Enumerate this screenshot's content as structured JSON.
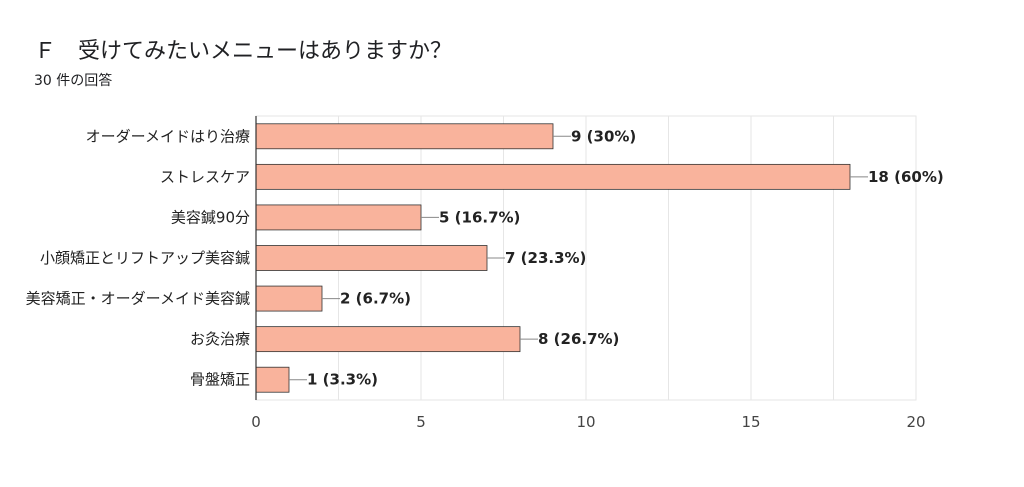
{
  "header": {
    "title": "Ｆ　受けてみたいメニューはありますか？",
    "response_count": "30 件の回答"
  },
  "chart_data": {
    "type": "bar",
    "orientation": "horizontal",
    "categories": [
      "オーダーメイドはり治療",
      "ストレスケア",
      "美容鍼90分",
      "小顔矯正とリフトアップ美容鍼",
      "美容矯正・オーダーメイド美容鍼",
      "お灸治療",
      "骨盤矯正"
    ],
    "values": [
      9,
      18,
      5,
      7,
      2,
      8,
      1
    ],
    "data_labels": [
      "9 (30%)",
      "18 (60%)",
      "5 (16.7%)",
      "7 (23.3%)",
      "2 (6.7%)",
      "8 (26.7%)",
      "1 (3.3%)"
    ],
    "xlim": [
      0,
      20
    ],
    "xticks": [
      0,
      5,
      10,
      15,
      20
    ],
    "grid": true,
    "bar_color": "#f9b39c",
    "bar_border_color": "#333333",
    "grid_color": "#e6e6e6"
  }
}
